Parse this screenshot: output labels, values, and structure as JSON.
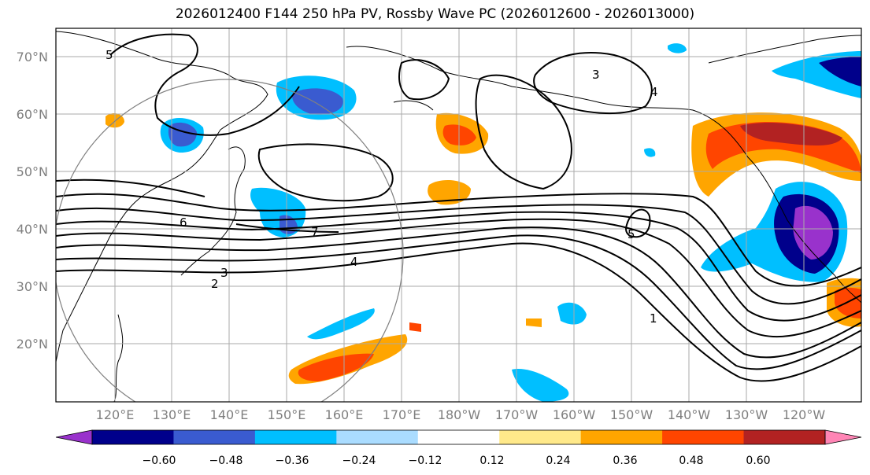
{
  "title": "2026012400 F144 250 hPa PV, Rossby Wave PC (2026012600 - 2026013000)",
  "map": {
    "lat_labels": [
      "70°N",
      "60°N",
      "50°N",
      "40°N",
      "30°N",
      "20°N"
    ],
    "lon_labels": [
      "120°E",
      "130°E",
      "140°E",
      "150°E",
      "160°E",
      "170°E",
      "180°W",
      "170°W",
      "160°W",
      "150°W",
      "140°W",
      "130°W",
      "120°W"
    ],
    "contour_labels": [
      "1",
      "2",
      "3",
      "4",
      "5",
      "6",
      "7",
      "3",
      "4",
      "5"
    ]
  },
  "colorbar": {
    "ticks": [
      "−0.60",
      "−0.48",
      "−0.36",
      "−0.24",
      "−0.12",
      "0.12",
      "0.24",
      "0.36",
      "0.48",
      "0.60"
    ],
    "colors": [
      "#9932cc",
      "#00008b",
      "#3a5bd0",
      "#00bfff",
      "#aadcff",
      "#ffffff",
      "#ffe98a",
      "#ffa500",
      "#ff4500",
      "#b22222",
      "#ff85b5"
    ]
  }
}
